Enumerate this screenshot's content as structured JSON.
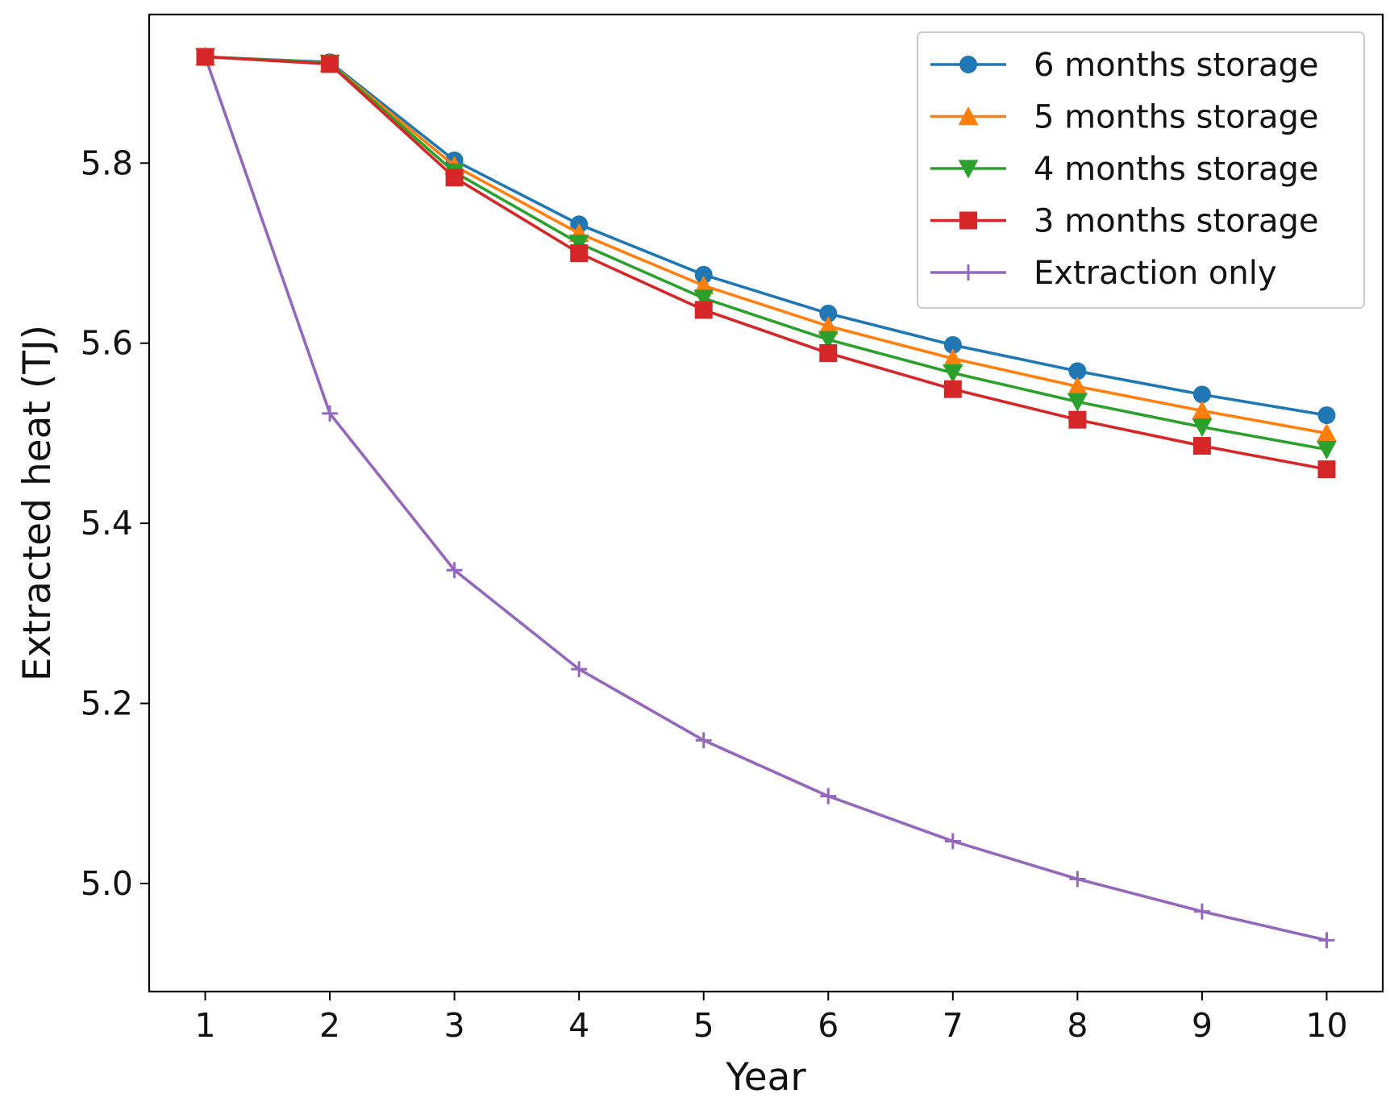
{
  "chart_data": {
    "type": "line",
    "title": "",
    "xlabel": "Year",
    "ylabel": "Extracted heat (TJ)",
    "x": [
      1,
      2,
      3,
      4,
      5,
      6,
      7,
      8,
      9,
      10
    ],
    "xlim": [
      0.55,
      10.45
    ],
    "ylim": [
      4.88,
      5.965
    ],
    "xticks": [
      1,
      2,
      3,
      4,
      5,
      6,
      7,
      8,
      9,
      10
    ],
    "yticks": [
      5.0,
      5.2,
      5.4,
      5.6,
      5.8
    ],
    "ytick_labels": [
      "5.0",
      "5.2",
      "5.4",
      "5.6",
      "5.8"
    ],
    "grid": false,
    "legend_position": "top-right",
    "series": [
      {
        "name": "6 months storage",
        "color": "#1f77b4",
        "marker": "circle",
        "values": [
          5.918,
          5.912,
          5.803,
          5.732,
          5.676,
          5.633,
          5.598,
          5.569,
          5.543,
          5.52
        ]
      },
      {
        "name": "5 months storage",
        "color": "#ff7f0e",
        "marker": "triangle-up",
        "values": [
          5.918,
          5.911,
          5.797,
          5.722,
          5.664,
          5.619,
          5.583,
          5.552,
          5.525,
          5.5
        ]
      },
      {
        "name": "4 months storage",
        "color": "#2ca02c",
        "marker": "triangle-down",
        "values": [
          5.918,
          5.911,
          5.79,
          5.711,
          5.65,
          5.604,
          5.567,
          5.535,
          5.507,
          5.482
        ]
      },
      {
        "name": "3 months storage",
        "color": "#d62728",
        "marker": "square",
        "values": [
          5.918,
          5.91,
          5.784,
          5.7,
          5.637,
          5.589,
          5.549,
          5.515,
          5.486,
          5.46
        ]
      },
      {
        "name": "Extraction only",
        "color": "#9467bd",
        "marker": "plus",
        "values": [
          5.918,
          5.522,
          5.348,
          5.238,
          5.159,
          5.097,
          5.047,
          5.005,
          4.969,
          4.937
        ]
      }
    ]
  }
}
